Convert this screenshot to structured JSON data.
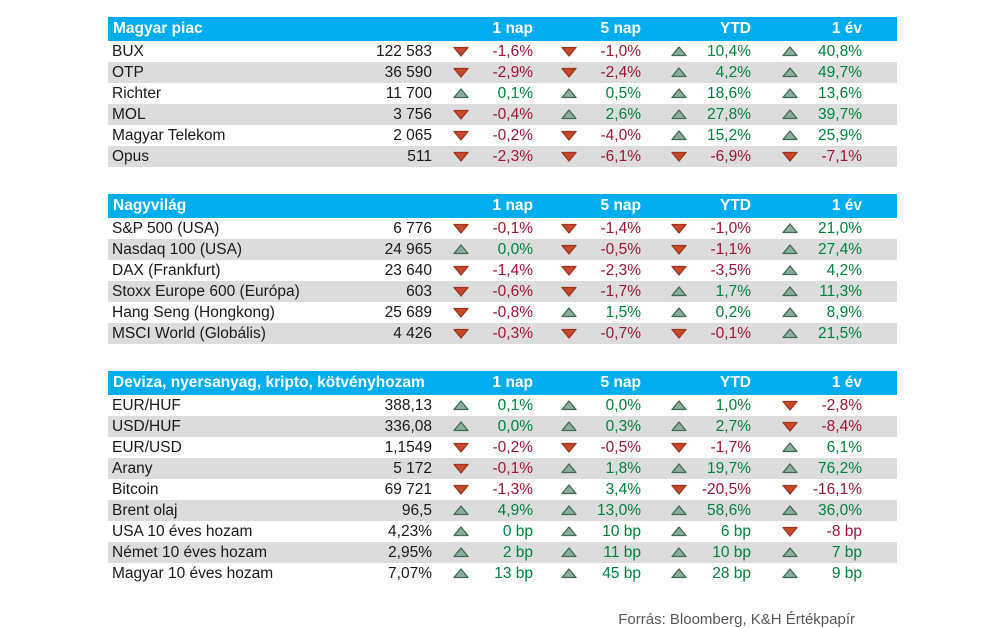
{
  "page": {
    "source_note": "Forrás: Bloomberg, K&H Értékpapír"
  },
  "colors": {
    "header_bg": "#00aeef",
    "header_text": "#ffffff",
    "row_alt_bg": "#dcdcdc",
    "text": "#1a1a1a",
    "positive_text": "#00823c",
    "negative_text": "#9d1535",
    "up_triangle_fill": "#8dac9b",
    "up_triangle_stroke": "#3e6b52",
    "down_triangle_fill": "#c7492c",
    "down_triangle_stroke": "#9b3420",
    "source_text": "#595959"
  },
  "chart_data": [
    {
      "type": "table",
      "title": "Magyar piac",
      "columns": [
        "1 nap",
        "5 nap",
        "YTD",
        "1 év"
      ],
      "rows": [
        {
          "name": "BUX",
          "value": "122 583",
          "changes": [
            {
              "dir": "down",
              "text": "-1,6%"
            },
            {
              "dir": "down",
              "text": "-1,0%"
            },
            {
              "dir": "up",
              "text": "10,4%"
            },
            {
              "dir": "up",
              "text": "40,8%"
            }
          ]
        },
        {
          "name": "OTP",
          "value": "36 590",
          "changes": [
            {
              "dir": "down",
              "text": "-2,9%"
            },
            {
              "dir": "down",
              "text": "-2,4%"
            },
            {
              "dir": "up",
              "text": "4,2%"
            },
            {
              "dir": "up",
              "text": "49,7%"
            }
          ]
        },
        {
          "name": "Richter",
          "value": "11 700",
          "changes": [
            {
              "dir": "up",
              "text": "0,1%"
            },
            {
              "dir": "up",
              "text": "0,5%"
            },
            {
              "dir": "up",
              "text": "18,6%"
            },
            {
              "dir": "up",
              "text": "13,6%"
            }
          ]
        },
        {
          "name": "MOL",
          "value": "3 756",
          "changes": [
            {
              "dir": "down",
              "text": "-0,4%"
            },
            {
              "dir": "up",
              "text": "2,6%"
            },
            {
              "dir": "up",
              "text": "27,8%"
            },
            {
              "dir": "up",
              "text": "39,7%"
            }
          ]
        },
        {
          "name": "Magyar Telekom",
          "value": "2 065",
          "changes": [
            {
              "dir": "down",
              "text": "-0,2%"
            },
            {
              "dir": "down",
              "text": "-4,0%"
            },
            {
              "dir": "up",
              "text": "15,2%"
            },
            {
              "dir": "up",
              "text": "25,9%"
            }
          ]
        },
        {
          "name": "Opus",
          "value": "511",
          "changes": [
            {
              "dir": "down",
              "text": "-2,3%"
            },
            {
              "dir": "down",
              "text": "-6,1%"
            },
            {
              "dir": "down",
              "text": "-6,9%"
            },
            {
              "dir": "down",
              "text": "-7,1%"
            }
          ]
        }
      ]
    },
    {
      "type": "table",
      "title": "Nagyvilág",
      "columns": [
        "1 nap",
        "5 nap",
        "YTD",
        "1 év"
      ],
      "rows": [
        {
          "name": "S&P 500 (USA)",
          "value": "6 776",
          "changes": [
            {
              "dir": "down",
              "text": "-0,1%"
            },
            {
              "dir": "down",
              "text": "-1,4%"
            },
            {
              "dir": "down",
              "text": "-1,0%"
            },
            {
              "dir": "up",
              "text": "21,0%"
            }
          ]
        },
        {
          "name": "Nasdaq 100 (USA)",
          "value": "24 965",
          "changes": [
            {
              "dir": "up",
              "text": "0,0%"
            },
            {
              "dir": "down",
              "text": "-0,5%"
            },
            {
              "dir": "down",
              "text": "-1,1%"
            },
            {
              "dir": "up",
              "text": "27,4%"
            }
          ]
        },
        {
          "name": "DAX (Frankfurt)",
          "value": "23 640",
          "changes": [
            {
              "dir": "down",
              "text": "-1,4%"
            },
            {
              "dir": "down",
              "text": "-2,3%"
            },
            {
              "dir": "down",
              "text": "-3,5%"
            },
            {
              "dir": "up",
              "text": "4,2%"
            }
          ]
        },
        {
          "name": "Stoxx Europe 600 (Európa)",
          "value": "603",
          "changes": [
            {
              "dir": "down",
              "text": "-0,6%"
            },
            {
              "dir": "down",
              "text": "-1,7%"
            },
            {
              "dir": "up",
              "text": "1,7%"
            },
            {
              "dir": "up",
              "text": "11,3%"
            }
          ]
        },
        {
          "name": "Hang Seng (Hongkong)",
          "value": "25 689",
          "changes": [
            {
              "dir": "down",
              "text": "-0,8%"
            },
            {
              "dir": "up",
              "text": "1,5%"
            },
            {
              "dir": "up",
              "text": "0,2%"
            },
            {
              "dir": "up",
              "text": "8,9%"
            }
          ]
        },
        {
          "name": "MSCI World (Globális)",
          "value": "4 426",
          "changes": [
            {
              "dir": "down",
              "text": "-0,3%"
            },
            {
              "dir": "down",
              "text": "-0,7%"
            },
            {
              "dir": "down",
              "text": "-0,1%"
            },
            {
              "dir": "up",
              "text": "21,5%"
            }
          ]
        }
      ]
    },
    {
      "type": "table",
      "title": "Deviza, nyersanyag, kripto, kötvényhozam",
      "columns": [
        "1 nap",
        "5 nap",
        "YTD",
        "1 év"
      ],
      "rows": [
        {
          "name": "EUR/HUF",
          "value": "388,13",
          "changes": [
            {
              "dir": "up",
              "text": "0,1%"
            },
            {
              "dir": "up",
              "text": "0,0%"
            },
            {
              "dir": "up",
              "text": "1,0%"
            },
            {
              "dir": "down",
              "text": "-2,8%"
            }
          ]
        },
        {
          "name": "USD/HUF",
          "value": "336,08",
          "changes": [
            {
              "dir": "up",
              "text": "0,0%"
            },
            {
              "dir": "up",
              "text": "0,3%"
            },
            {
              "dir": "up",
              "text": "2,7%"
            },
            {
              "dir": "down",
              "text": "-8,4%"
            }
          ]
        },
        {
          "name": "EUR/USD",
          "value": "1,1549",
          "changes": [
            {
              "dir": "down",
              "text": "-0,2%"
            },
            {
              "dir": "down",
              "text": "-0,5%"
            },
            {
              "dir": "down",
              "text": "-1,7%"
            },
            {
              "dir": "up",
              "text": "6,1%"
            }
          ]
        },
        {
          "name": "Arany",
          "value": "5 172",
          "changes": [
            {
              "dir": "down",
              "text": "-0,1%"
            },
            {
              "dir": "up",
              "text": "1,8%"
            },
            {
              "dir": "up",
              "text": "19,7%"
            },
            {
              "dir": "up",
              "text": "76,2%"
            }
          ]
        },
        {
          "name": "Bitcoin",
          "value": "69 721",
          "changes": [
            {
              "dir": "down",
              "text": "-1,3%"
            },
            {
              "dir": "up",
              "text": "3,4%"
            },
            {
              "dir": "down",
              "text": "-20,5%"
            },
            {
              "dir": "down",
              "text": "-16,1%"
            }
          ]
        },
        {
          "name": "Brent olaj",
          "value": "96,5",
          "changes": [
            {
              "dir": "up",
              "text": "4,9%"
            },
            {
              "dir": "up",
              "text": "13,0%"
            },
            {
              "dir": "up",
              "text": "58,6%"
            },
            {
              "dir": "up",
              "text": "36,0%"
            }
          ]
        },
        {
          "name": "USA 10 éves hozam",
          "value": "4,23%",
          "changes": [
            {
              "dir": "up",
              "text": "0 bp"
            },
            {
              "dir": "up",
              "text": "10 bp"
            },
            {
              "dir": "up",
              "text": "6 bp"
            },
            {
              "dir": "down",
              "text": "-8 bp"
            }
          ]
        },
        {
          "name": "Német 10 éves hozam",
          "value": "2,95%",
          "changes": [
            {
              "dir": "up",
              "text": "2 bp"
            },
            {
              "dir": "up",
              "text": "11 bp"
            },
            {
              "dir": "up",
              "text": "10 bp"
            },
            {
              "dir": "up",
              "text": "7 bp"
            }
          ]
        },
        {
          "name": "Magyar 10 éves hozam",
          "value": "7,07%",
          "changes": [
            {
              "dir": "up",
              "text": "13 bp"
            },
            {
              "dir": "up",
              "text": "45 bp"
            },
            {
              "dir": "up",
              "text": "28 bp"
            },
            {
              "dir": "up",
              "text": "9 bp"
            }
          ]
        }
      ]
    }
  ]
}
